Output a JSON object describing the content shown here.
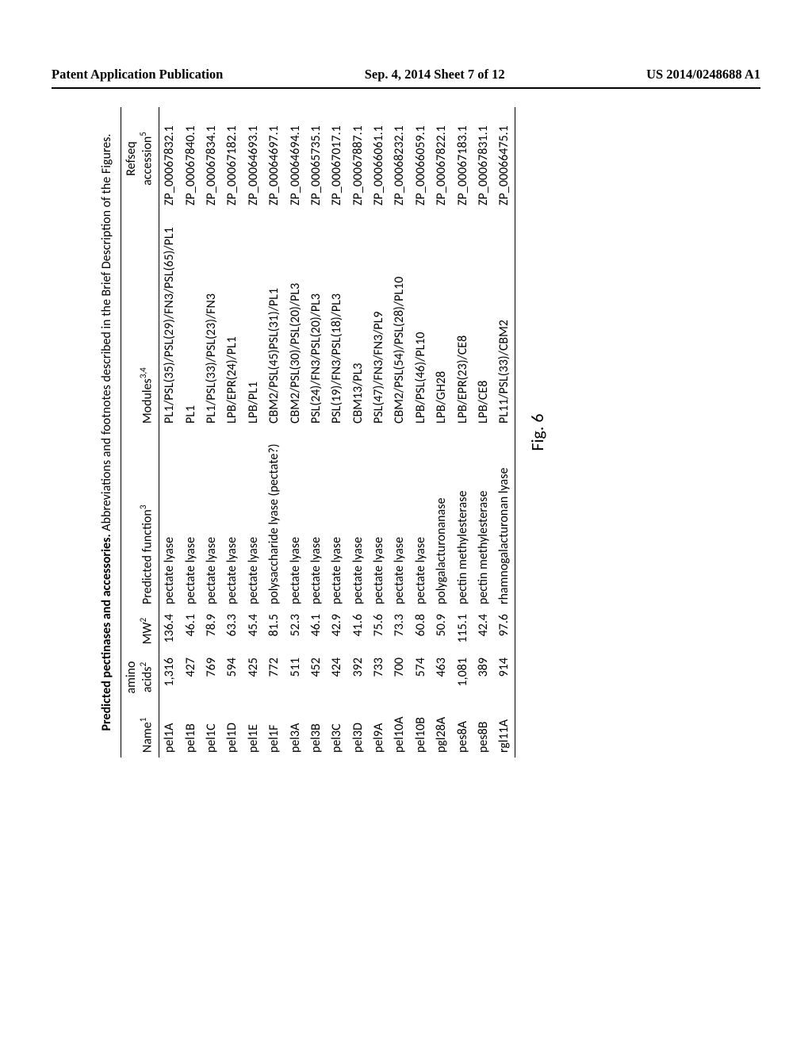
{
  "header": {
    "left": "Patent Application Publication",
    "center": "Sep. 4, 2014  Sheet 7 of 12",
    "right": "US 2014/0248688 A1"
  },
  "table": {
    "title_bold": "Predicted pectinases and accessories.",
    "title_rest": " Abbreviations and footnotes described in the Brief Description of the Figures.",
    "columns": {
      "name": "Name",
      "name_sup": "1",
      "aa": "amino\nacids",
      "aa_sup": "2",
      "mw": "MW",
      "mw_sup": "2",
      "func": "Predicted function",
      "func_sup": "3",
      "mod": "Modules",
      "mod_sup": "3,4",
      "ref": "Refseq\naccession",
      "ref_sup": "5"
    },
    "rows": [
      {
        "name": "pel1A",
        "aa": "1,316",
        "mw": "136.4",
        "func": "pectate lyase",
        "mod": "PL1/PSL(35)/PSL(29)/FN3/PSL(65)/PL1",
        "ref": "ZP_00067832.1"
      },
      {
        "name": "pel1B",
        "aa": "427",
        "mw": "46.1",
        "func": "pectate lyase",
        "mod": "PL1",
        "ref": "ZP_00067840.1"
      },
      {
        "name": "pel1C",
        "aa": "769",
        "mw": "78.9",
        "func": "pectate lyase",
        "mod": "PL1/PSL(33)/PSL(23)/FN3",
        "ref": "ZP_00067834.1"
      },
      {
        "name": "pel1D",
        "aa": "594",
        "mw": "63.3",
        "func": "pectate lyase",
        "mod": "LPB/EPR(24)/PL1",
        "ref": "ZP_00067182.1"
      },
      {
        "name": "pel1E",
        "aa": "425",
        "mw": "45.4",
        "func": "pectate lyase",
        "mod": "LPB/PL1",
        "ref": "ZP_00064693.1"
      },
      {
        "name": "pel1F",
        "aa": "772",
        "mw": "81.5",
        "func": "polysaccharide lyase (pectate?)",
        "mod": "CBM2/PSL(45)PSL(31)/PL1",
        "ref": "ZP_00064697.1"
      },
      {
        "name": "pel3A",
        "aa": "511",
        "mw": "52.3",
        "func": "pectate lyase",
        "mod": "CBM2/PSL(30)/PSL(20)/PL3",
        "ref": "ZP_00064694.1"
      },
      {
        "name": "pel3B",
        "aa": "452",
        "mw": "46.1",
        "func": "pectate lyase",
        "mod": "PSL(24)/FN3/PSL(20)/PL3",
        "ref": "ZP_00065735.1"
      },
      {
        "name": "pel3C",
        "aa": "424",
        "mw": "42.9",
        "func": "pectate lyase",
        "mod": "PSL(19)/FN3/PSL(18)/PL3",
        "ref": "ZP_00067017.1"
      },
      {
        "name": "pel3D",
        "aa": "392",
        "mw": "41.6",
        "func": "pectate lyase",
        "mod": "CBM13/PL3",
        "ref": "ZP_00067887.1"
      },
      {
        "name": "pel9A",
        "aa": "733",
        "mw": "75.6",
        "func": "pectate lyase",
        "mod": "PSL(47)/FN3/FN3/PL9",
        "ref": "ZP_00066061.1"
      },
      {
        "name": "pel10A",
        "aa": "700",
        "mw": "73.3",
        "func": "pectate lyase",
        "mod": "CBM2/PSL(54)/PSL(28)/PL10",
        "ref": "ZP_00068232.1"
      },
      {
        "name": "pel10B",
        "aa": "574",
        "mw": "60.8",
        "func": "pectate lyase",
        "mod": "LPB/PSL(46)/PL10",
        "ref": "ZP_00066059.1"
      },
      {
        "name": "pgl28A",
        "aa": "463",
        "mw": "50.9",
        "func": "polygalacturonanase",
        "mod": "LPB/GH28",
        "ref": "ZP_00067822.1"
      },
      {
        "name": "pes8A",
        "aa": "1,081",
        "mw": "115.1",
        "func": "pectin methylesterase",
        "mod": "LPB/EPR(23)/CE8",
        "ref": "ZP_00067183.1"
      },
      {
        "name": "pes8B",
        "aa": "389",
        "mw": "42.4",
        "func": "pectin methylesterase",
        "mod": "LPB/CE8",
        "ref": "ZP_00067831.1"
      },
      {
        "name": "rgl11A",
        "aa": "914",
        "mw": "97.6",
        "func": "rhamnogalacturonan lyase",
        "mod": "PL11/PSL(33)/CBM2",
        "ref": "ZP_00066475.1"
      }
    ]
  },
  "caption": "Fig. 6"
}
